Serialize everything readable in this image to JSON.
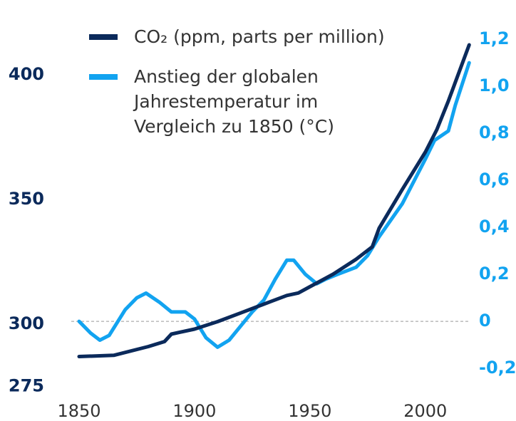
{
  "chart_data": {
    "type": "line",
    "series": [
      {
        "name": "CO₂ (ppm, parts per million)",
        "color": "#0b2a5b",
        "x": [
          1850,
          1865,
          1880,
          1887,
          1890,
          1900,
          1910,
          1920,
          1930,
          1940,
          1945,
          1950,
          1960,
          1970,
          1977,
          1980,
          1990,
          2000,
          2005,
          2010,
          2019
        ],
        "values": [
          287,
          287.5,
          291,
          293,
          296,
          298,
          301,
          304.5,
          308,
          311.5,
          312.5,
          315,
          320,
          326,
          331,
          338.5,
          354,
          369,
          378,
          389.5,
          412
        ]
      },
      {
        "name": "Anstieg der globalen Jahrestemperatur im Vergleich zu 1850 (°C)",
        "color": "#12a3f0",
        "axis": "y2",
        "x": [
          1850,
          1855,
          1859,
          1863,
          1870,
          1875,
          1879,
          1885,
          1890,
          1896,
          1900,
          1905,
          1910,
          1915,
          1920,
          1925,
          1930,
          1935,
          1940,
          1943,
          1948,
          1953,
          1957,
          1962,
          1970,
          1975,
          1980,
          1990,
          2000,
          2004,
          2010,
          2013,
          2019
        ],
        "values": [
          0,
          -0.05,
          -0.08,
          -0.06,
          0.05,
          0.1,
          0.12,
          0.08,
          0.04,
          0.04,
          0.01,
          -0.07,
          -0.11,
          -0.08,
          -0.02,
          0.04,
          0.09,
          0.18,
          0.26,
          0.26,
          0.2,
          0.16,
          0.18,
          0.2,
          0.23,
          0.28,
          0.36,
          0.5,
          0.69,
          0.77,
          0.81,
          0.92,
          1.1
        ]
      }
    ],
    "xlim": [
      1840,
      2022
    ],
    "xticks": [
      1850,
      1900,
      1950,
      2000
    ],
    "ylim": [
      275,
      425
    ],
    "yticks": [
      275,
      300,
      350,
      400
    ],
    "y2lim": [
      -0.277,
      1.314
    ],
    "y2ticks": [
      {
        "value": 1.2,
        "label": "1,2"
      },
      {
        "value": 1.0,
        "label": "1,0"
      },
      {
        "value": 0.8,
        "label": "0,8"
      },
      {
        "value": 0.6,
        "label": "0,6"
      },
      {
        "value": 0.4,
        "label": "0,4"
      },
      {
        "value": 0.2,
        "label": "0,2"
      },
      0,
      {
        "value": -0.2,
        "label": "-0,2"
      }
    ]
  }
}
